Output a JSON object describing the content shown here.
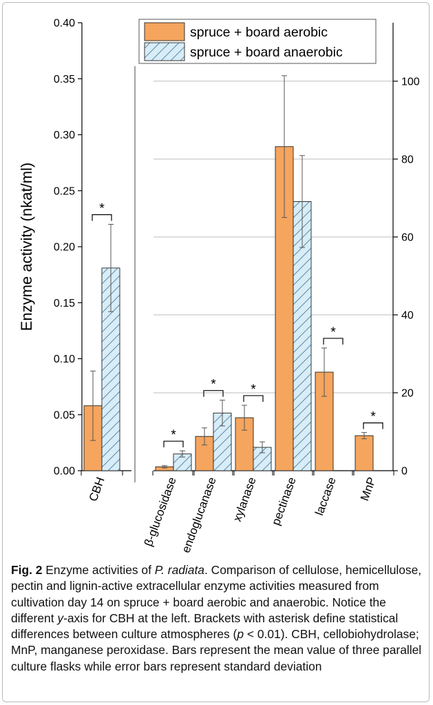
{
  "chart_data": {
    "type": "bar",
    "left_panel": {
      "ylabel": "Enzyme activity (nkat/ml)",
      "ylim": [
        0,
        0.4
      ],
      "yticks": [
        "0.00",
        "0.05",
        "0.10",
        "0.15",
        "0.20",
        "0.25",
        "0.30",
        "0.35",
        "0.40"
      ],
      "categories": [
        "CBH"
      ],
      "series": [
        {
          "name": "spruce + board aerobic",
          "values": [
            0.058
          ],
          "errors": [
            0.031
          ]
        },
        {
          "name": "spruce + board anaerobic",
          "values": [
            0.181
          ],
          "errors": [
            0.039
          ]
        }
      ],
      "significance": [
        {
          "category": "CBH",
          "marker": "*"
        }
      ]
    },
    "right_panel": {
      "ylim": [
        0,
        115
      ],
      "yticks": [
        "0",
        "20",
        "40",
        "60",
        "80",
        "100"
      ],
      "categories": [
        "β-glucosidase",
        "endoglucanase",
        "xylanase",
        "pectinase",
        "laccase",
        "MnP"
      ],
      "series": [
        {
          "name": "spruce + board aerobic",
          "values": [
            1.0,
            8.8,
            13.6,
            83.2,
            25.3,
            9.0
          ],
          "errors": [
            0.3,
            2.2,
            3.2,
            18.2,
            6.2,
            0.8
          ]
        },
        {
          "name": "spruce + board anaerobic",
          "values": [
            4.3,
            14.8,
            6.0,
            69.1,
            0,
            0
          ],
          "errors": [
            0.8,
            3.3,
            1.4,
            11.8,
            0,
            0
          ]
        }
      ],
      "significance": [
        {
          "category": "β-glucosidase",
          "marker": "*"
        },
        {
          "category": "endoglucanase",
          "marker": "*"
        },
        {
          "category": "xylanase",
          "marker": "*"
        },
        {
          "category": "laccase",
          "marker": "*"
        },
        {
          "category": "MnP",
          "marker": "*"
        }
      ]
    },
    "legend_position": "top-right",
    "grid": true,
    "colors": {
      "aerobic_fill": "#f5a55e",
      "anaerobic_fill": "#d8edf7",
      "anaerobic_hatch": "#5f8aa6",
      "grid": "#bdbdbd"
    }
  },
  "caption": {
    "label": "Fig. 2",
    "text_1": "Enzyme activities of ",
    "species": "P. radiata",
    "text_2": ". Comparison of cellulose, hemicellulose, pectin and lignin-active extracellular enzyme activities measured from cultivation day 14 on spruce + board aerobic and anaerobic. Notice the different ",
    "axis_word": "y",
    "text_3": "-axis for CBH at the left. Brackets with asterisk define statistical differences between culture atmospheres (",
    "p_symbol": "p",
    "text_4": " < 0.01). CBH, cellobiohydrolase; MnP, manganese peroxidase. Bars represent the mean value of three parallel culture flasks while error bars represent standard deviation"
  }
}
